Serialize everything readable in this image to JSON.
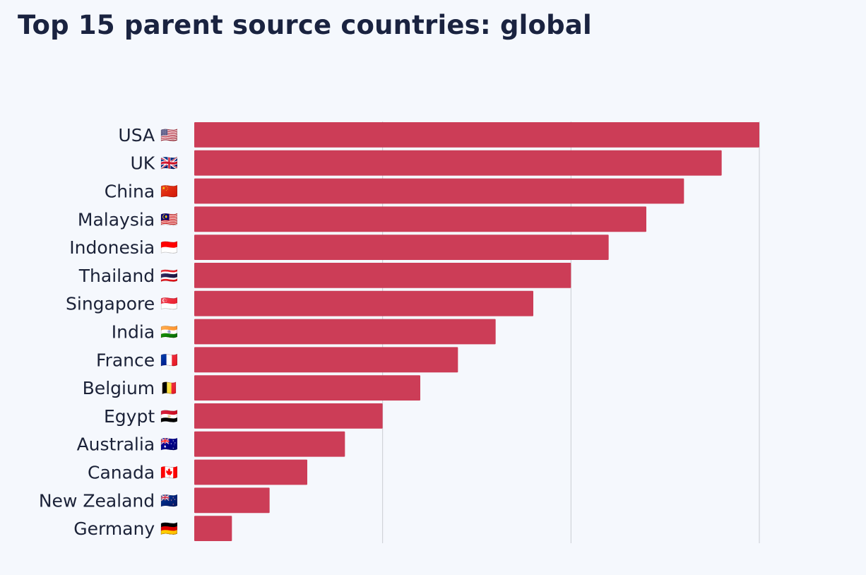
{
  "chart_data": {
    "type": "bar",
    "orientation": "horizontal",
    "title": "Top 15 parent source countries: global",
    "categories": [
      "USA",
      "UK",
      "China",
      "Malaysia",
      "Indonesia",
      "Thailand",
      "Singapore",
      "India",
      "France",
      "Belgium",
      "Egypt",
      "Australia",
      "Canada",
      "New Zealand",
      "Germany"
    ],
    "flags": [
      "🇺🇸",
      "🇬🇧",
      "🇨🇳",
      "🇲🇾",
      "🇮🇩",
      "🇹🇭",
      "🇸🇬",
      "🇮🇳",
      "🇫🇷",
      "🇧🇪",
      "🇪🇬",
      "🇦🇺",
      "🇨🇦",
      "🇳🇿",
      "🇩🇪"
    ],
    "values": [
      15,
      14,
      13,
      12,
      11,
      10,
      9,
      8,
      7,
      6,
      5,
      4,
      3,
      2,
      1
    ],
    "xlim": [
      0,
      15
    ],
    "gridlines": [
      5,
      10,
      15
    ],
    "grid": true,
    "bar_color": "#cc3d57",
    "grid_color": "#c9ccd2"
  }
}
